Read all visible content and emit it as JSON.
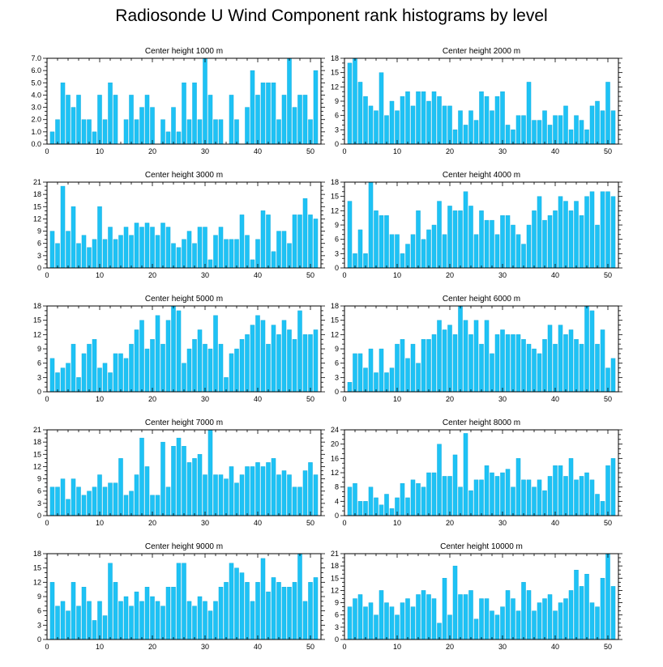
{
  "title": "Radiosonde U Wind Component rank histograms by level",
  "colors": {
    "bar": "#1ec2f5",
    "bar_edge": "#0aa6d8",
    "axis": "#000000"
  },
  "chart_data": [
    {
      "type": "bar",
      "title": "Center height 1000 m",
      "xlim": [
        0,
        52
      ],
      "xticks": [
        0,
        10,
        20,
        30,
        40,
        50
      ],
      "ylim": [
        0,
        7
      ],
      "yticks": [
        0,
        1,
        2,
        3,
        4,
        5,
        6,
        7
      ],
      "ytick_labels": [
        "0.0",
        "1.0",
        "2.0",
        "3.0",
        "4.0",
        "5.0",
        "6.0",
        "7.0"
      ],
      "x": [
        1,
        2,
        3,
        4,
        5,
        6,
        7,
        8,
        9,
        10,
        11,
        12,
        13,
        14,
        15,
        16,
        17,
        18,
        19,
        20,
        21,
        22,
        23,
        24,
        25,
        26,
        27,
        28,
        29,
        30,
        31,
        32,
        33,
        34,
        35,
        36,
        37,
        38,
        39,
        40,
        41,
        42,
        43,
        44,
        45,
        46,
        47,
        48,
        49,
        50,
        51
      ],
      "values": [
        1,
        2,
        5,
        4,
        3,
        4,
        2,
        2,
        1,
        4,
        2,
        5,
        4,
        0,
        2,
        4,
        2,
        3,
        4,
        3,
        0,
        2,
        1,
        3,
        1,
        5,
        2,
        5,
        2,
        7,
        4,
        2,
        2,
        0,
        4,
        2,
        0,
        3,
        6,
        4,
        5,
        5,
        5,
        2,
        4,
        7,
        3,
        4,
        4,
        2,
        6
      ]
    },
    {
      "type": "bar",
      "title": "Center height 2000 m",
      "xlim": [
        0,
        52
      ],
      "xticks": [
        0,
        10,
        20,
        30,
        40,
        50
      ],
      "ylim": [
        0,
        18
      ],
      "yticks": [
        0,
        3,
        6,
        9,
        12,
        15,
        18
      ],
      "ytick_labels": [
        "0",
        "3",
        "6",
        "9",
        "12",
        "15",
        "18"
      ],
      "x": [
        1,
        2,
        3,
        4,
        5,
        6,
        7,
        8,
        9,
        10,
        11,
        12,
        13,
        14,
        15,
        16,
        17,
        18,
        19,
        20,
        21,
        22,
        23,
        24,
        25,
        26,
        27,
        28,
        29,
        30,
        31,
        32,
        33,
        34,
        35,
        36,
        37,
        38,
        39,
        40,
        41,
        42,
        43,
        44,
        45,
        46,
        47,
        48,
        49,
        50,
        51
      ],
      "values": [
        17,
        18,
        13,
        10,
        8,
        7,
        15,
        6,
        9,
        7,
        10,
        11,
        8,
        11,
        11,
        9,
        11,
        10,
        8,
        8,
        3,
        7,
        4,
        7,
        5,
        11,
        10,
        7,
        10,
        11,
        4,
        3,
        6,
        6,
        13,
        5,
        5,
        7,
        4,
        6,
        6,
        8,
        3,
        6,
        5,
        3,
        8,
        9,
        7,
        13,
        7
      ]
    },
    {
      "type": "bar",
      "title": "Center height 3000 m",
      "xlim": [
        0,
        52
      ],
      "xticks": [
        0,
        10,
        20,
        30,
        40,
        50
      ],
      "ylim": [
        0,
        21
      ],
      "yticks": [
        0,
        3,
        6,
        9,
        12,
        15,
        18,
        21
      ],
      "ytick_labels": [
        "0",
        "3",
        "6",
        "9",
        "12",
        "15",
        "18",
        "21"
      ],
      "x": [
        1,
        2,
        3,
        4,
        5,
        6,
        7,
        8,
        9,
        10,
        11,
        12,
        13,
        14,
        15,
        16,
        17,
        18,
        19,
        20,
        21,
        22,
        23,
        24,
        25,
        26,
        27,
        28,
        29,
        30,
        31,
        32,
        33,
        34,
        35,
        36,
        37,
        38,
        39,
        40,
        41,
        42,
        43,
        44,
        45,
        46,
        47,
        48,
        49,
        50,
        51
      ],
      "values": [
        9,
        6,
        20,
        9,
        15,
        6,
        8,
        5,
        7,
        15,
        7,
        10,
        7,
        8,
        10,
        8,
        11,
        10,
        11,
        10,
        8,
        11,
        10,
        6,
        5,
        7,
        9,
        6,
        10,
        10,
        2,
        8,
        10,
        7,
        7,
        7,
        13,
        8,
        2,
        7,
        14,
        13,
        4,
        9,
        9,
        6,
        13,
        13,
        17,
        13,
        12
      ]
    },
    {
      "type": "bar",
      "title": "Center height 4000 m",
      "xlim": [
        0,
        52
      ],
      "xticks": [
        0,
        10,
        20,
        30,
        40,
        50
      ],
      "ylim": [
        0,
        18
      ],
      "yticks": [
        0,
        3,
        6,
        9,
        12,
        15,
        18
      ],
      "ytick_labels": [
        "0",
        "3",
        "6",
        "9",
        "12",
        "15",
        "18"
      ],
      "x": [
        1,
        2,
        3,
        4,
        5,
        6,
        7,
        8,
        9,
        10,
        11,
        12,
        13,
        14,
        15,
        16,
        17,
        18,
        19,
        20,
        21,
        22,
        23,
        24,
        25,
        26,
        27,
        28,
        29,
        30,
        31,
        32,
        33,
        34,
        35,
        36,
        37,
        38,
        39,
        40,
        41,
        42,
        43,
        44,
        45,
        46,
        47,
        48,
        49,
        50,
        51
      ],
      "values": [
        14,
        3,
        8,
        3,
        18,
        12,
        11,
        11,
        7,
        7,
        3,
        5,
        7,
        12,
        6,
        8,
        9,
        14,
        7,
        13,
        12,
        12,
        16,
        13,
        7,
        12,
        10,
        10,
        7,
        11,
        11,
        9,
        7,
        5,
        9,
        12,
        15,
        10,
        11,
        12,
        15,
        14,
        12,
        14,
        11,
        15,
        16,
        9,
        16,
        16,
        15
      ]
    },
    {
      "type": "bar",
      "title": "Center height 5000 m",
      "xlim": [
        0,
        52
      ],
      "xticks": [
        0,
        10,
        20,
        30,
        40,
        50
      ],
      "ylim": [
        0,
        18
      ],
      "yticks": [
        0,
        3,
        6,
        9,
        12,
        15,
        18
      ],
      "ytick_labels": [
        "0",
        "3",
        "6",
        "9",
        "12",
        "15",
        "18"
      ],
      "x": [
        1,
        2,
        3,
        4,
        5,
        6,
        7,
        8,
        9,
        10,
        11,
        12,
        13,
        14,
        15,
        16,
        17,
        18,
        19,
        20,
        21,
        22,
        23,
        24,
        25,
        26,
        27,
        28,
        29,
        30,
        31,
        32,
        33,
        34,
        35,
        36,
        37,
        38,
        39,
        40,
        41,
        42,
        43,
        44,
        45,
        46,
        47,
        48,
        49,
        50,
        51
      ],
      "values": [
        7,
        4,
        5,
        6,
        10,
        3,
        8,
        10,
        11,
        5,
        6,
        4,
        8,
        8,
        7,
        10,
        13,
        15,
        9,
        11,
        16,
        10,
        15,
        18,
        17,
        6,
        9,
        11,
        13,
        10,
        9,
        16,
        10,
        3,
        8,
        9,
        11,
        12,
        14,
        16,
        15,
        10,
        14,
        12,
        15,
        13,
        11,
        17,
        12,
        12,
        13
      ]
    },
    {
      "type": "bar",
      "title": "Center height 6000 m",
      "xlim": [
        0,
        52
      ],
      "xticks": [
        0,
        10,
        20,
        30,
        40,
        50
      ],
      "ylim": [
        0,
        18
      ],
      "yticks": [
        0,
        3,
        6,
        9,
        12,
        15,
        18
      ],
      "ytick_labels": [
        "0",
        "3",
        "6",
        "9",
        "12",
        "15",
        "18"
      ],
      "x": [
        1,
        2,
        3,
        4,
        5,
        6,
        7,
        8,
        9,
        10,
        11,
        12,
        13,
        14,
        15,
        16,
        17,
        18,
        19,
        20,
        21,
        22,
        23,
        24,
        25,
        26,
        27,
        28,
        29,
        30,
        31,
        32,
        33,
        34,
        35,
        36,
        37,
        38,
        39,
        40,
        41,
        42,
        43,
        44,
        45,
        46,
        47,
        48,
        49,
        50,
        51
      ],
      "values": [
        2,
        8,
        8,
        5,
        9,
        4,
        9,
        4,
        5,
        10,
        11,
        7,
        10,
        6,
        11,
        11,
        12,
        15,
        13,
        14,
        12,
        18,
        15,
        12,
        15,
        10,
        15,
        8,
        12,
        13,
        12,
        12,
        12,
        11,
        10,
        9,
        8,
        11,
        14,
        10,
        14,
        12,
        13,
        11,
        10,
        18,
        17,
        10,
        13,
        5,
        7
      ]
    },
    {
      "type": "bar",
      "title": "Center height 7000 m",
      "xlim": [
        0,
        52
      ],
      "xticks": [
        0,
        10,
        20,
        30,
        40,
        50
      ],
      "ylim": [
        0,
        21
      ],
      "yticks": [
        0,
        3,
        6,
        9,
        12,
        15,
        18,
        21
      ],
      "ytick_labels": [
        "0",
        "3",
        "6",
        "9",
        "12",
        "15",
        "18",
        "21"
      ],
      "x": [
        1,
        2,
        3,
        4,
        5,
        6,
        7,
        8,
        9,
        10,
        11,
        12,
        13,
        14,
        15,
        16,
        17,
        18,
        19,
        20,
        21,
        22,
        23,
        24,
        25,
        26,
        27,
        28,
        29,
        30,
        31,
        32,
        33,
        34,
        35,
        36,
        37,
        38,
        39,
        40,
        41,
        42,
        43,
        44,
        45,
        46,
        47,
        48,
        49,
        50,
        51
      ],
      "values": [
        7,
        7,
        9,
        4,
        9,
        7,
        5,
        6,
        7,
        10,
        7,
        8,
        8,
        14,
        5,
        6,
        10,
        19,
        12,
        5,
        5,
        18,
        7,
        17,
        19,
        17,
        13,
        14,
        15,
        10,
        21,
        10,
        10,
        9,
        12,
        8,
        10,
        12,
        12,
        13,
        12,
        13,
        14,
        10,
        11,
        10,
        7,
        7,
        11,
        13,
        10
      ]
    },
    {
      "type": "bar",
      "title": "Center height 8000 m",
      "xlim": [
        0,
        52
      ],
      "xticks": [
        0,
        10,
        20,
        30,
        40,
        50
      ],
      "ylim": [
        0,
        24
      ],
      "yticks": [
        0,
        4,
        8,
        12,
        16,
        20,
        24
      ],
      "ytick_labels": [
        "0",
        "4",
        "8",
        "12",
        "16",
        "20",
        "24"
      ],
      "x": [
        1,
        2,
        3,
        4,
        5,
        6,
        7,
        8,
        9,
        10,
        11,
        12,
        13,
        14,
        15,
        16,
        17,
        18,
        19,
        20,
        21,
        22,
        23,
        24,
        25,
        26,
        27,
        28,
        29,
        30,
        31,
        32,
        33,
        34,
        35,
        36,
        37,
        38,
        39,
        40,
        41,
        42,
        43,
        44,
        45,
        46,
        47,
        48,
        49,
        50,
        51
      ],
      "values": [
        8,
        9,
        4,
        4,
        8,
        5,
        3,
        6,
        2,
        5,
        9,
        5,
        10,
        9,
        8,
        12,
        12,
        20,
        11,
        11,
        17,
        8,
        23,
        7,
        10,
        10,
        14,
        12,
        11,
        12,
        13,
        8,
        16,
        10,
        10,
        8,
        10,
        7,
        11,
        14,
        14,
        11,
        16,
        10,
        11,
        12,
        10,
        6,
        4,
        14,
        16
      ]
    },
    {
      "type": "bar",
      "title": "Center height 9000 m",
      "xlim": [
        0,
        52
      ],
      "xticks": [
        0,
        10,
        20,
        30,
        40,
        50
      ],
      "ylim": [
        0,
        18
      ],
      "yticks": [
        0,
        3,
        6,
        9,
        12,
        15,
        18
      ],
      "ytick_labels": [
        "0",
        "3",
        "6",
        "9",
        "12",
        "15",
        "18"
      ],
      "x": [
        1,
        2,
        3,
        4,
        5,
        6,
        7,
        8,
        9,
        10,
        11,
        12,
        13,
        14,
        15,
        16,
        17,
        18,
        19,
        20,
        21,
        22,
        23,
        24,
        25,
        26,
        27,
        28,
        29,
        30,
        31,
        32,
        33,
        34,
        35,
        36,
        37,
        38,
        39,
        40,
        41,
        42,
        43,
        44,
        45,
        46,
        47,
        48,
        49,
        50,
        51
      ],
      "values": [
        12,
        7,
        8,
        6,
        12,
        7,
        11,
        8,
        4,
        8,
        5,
        16,
        12,
        8,
        9,
        7,
        10,
        8,
        11,
        9,
        8,
        7,
        11,
        11,
        16,
        16,
        8,
        7,
        9,
        8,
        6,
        8,
        11,
        12,
        16,
        15,
        14,
        12,
        8,
        12,
        17,
        10,
        13,
        12,
        11,
        11,
        12,
        18,
        8,
        12,
        13
      ]
    },
    {
      "type": "bar",
      "title": "Center height 10000 m",
      "xlim": [
        0,
        52
      ],
      "xticks": [
        0,
        10,
        20,
        30,
        40,
        50
      ],
      "ylim": [
        0,
        21
      ],
      "yticks": [
        0,
        3,
        6,
        9,
        12,
        15,
        18,
        21
      ],
      "ytick_labels": [
        "0",
        "3",
        "6",
        "9",
        "12",
        "15",
        "18",
        "21"
      ],
      "x": [
        1,
        2,
        3,
        4,
        5,
        6,
        7,
        8,
        9,
        10,
        11,
        12,
        13,
        14,
        15,
        16,
        17,
        18,
        19,
        20,
        21,
        22,
        23,
        24,
        25,
        26,
        27,
        28,
        29,
        30,
        31,
        32,
        33,
        34,
        35,
        36,
        37,
        38,
        39,
        40,
        41,
        42,
        43,
        44,
        45,
        46,
        47,
        48,
        49,
        50,
        51
      ],
      "values": [
        8,
        10,
        11,
        8,
        9,
        6,
        12,
        9,
        8,
        6,
        9,
        10,
        8,
        11,
        12,
        11,
        10,
        4,
        15,
        6,
        18,
        11,
        11,
        12,
        5,
        10,
        10,
        7,
        6,
        8,
        12,
        10,
        7,
        14,
        12,
        7,
        9,
        10,
        11,
        7,
        9,
        10,
        12,
        17,
        13,
        16,
        9,
        8,
        15,
        21,
        13
      ]
    }
  ]
}
